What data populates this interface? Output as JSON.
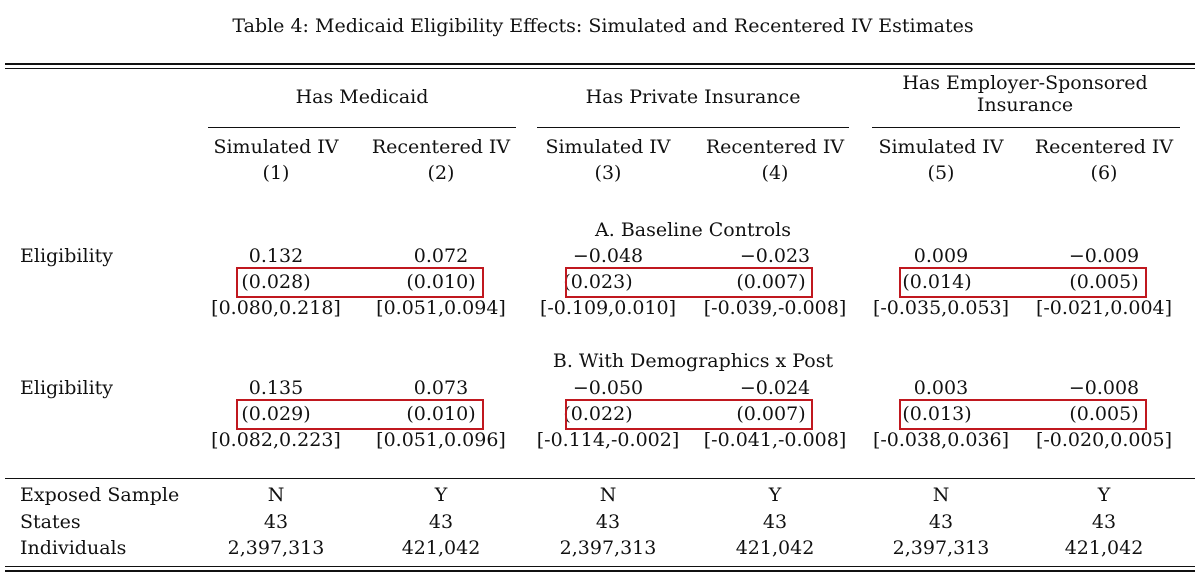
{
  "caption": "Table 4: Medicaid Eligibility Effects: Simulated and Recentered IV Estimates",
  "groups": [
    "Has Medicaid",
    "Has Private Insurance",
    "Has Employer-Sponsored Insurance"
  ],
  "columns": [
    {
      "method": "Simulated IV",
      "num": "(1)"
    },
    {
      "method": "Recentered IV",
      "num": "(2)"
    },
    {
      "method": "Simulated IV",
      "num": "(3)"
    },
    {
      "method": "Recentered IV",
      "num": "(4)"
    },
    {
      "method": "Simulated IV",
      "num": "(5)"
    },
    {
      "method": "Recentered IV",
      "num": "(6)"
    }
  ],
  "panels": [
    {
      "title": "A. Baseline Controls",
      "row_label": "Eligibility",
      "coef": [
        "0.132",
        "0.072",
        "−0.048",
        "−0.023",
        "0.009",
        "−0.009"
      ],
      "se": [
        "(0.028)",
        "(0.010)",
        "(0.023)",
        "(0.007)",
        "(0.014)",
        "(0.005)"
      ],
      "ci": [
        "[0.080,0.218]",
        "[0.051,0.094]",
        "[-0.109,0.010]",
        "[-0.039,-0.008]",
        "[-0.035,0.053]",
        "[-0.021,0.004]"
      ]
    },
    {
      "title": "B. With Demographics x Post",
      "row_label": "Eligibility",
      "coef": [
        "0.135",
        "0.073",
        "−0.050",
        "−0.024",
        "0.003",
        "−0.008"
      ],
      "se": [
        "(0.029)",
        "(0.010)",
        "(0.022)",
        "(0.007)",
        "(0.013)",
        "(0.005)"
      ],
      "ci": [
        "[0.082,0.223]",
        "[0.051,0.096]",
        "[-0.114,-0.002]",
        "[-0.041,-0.008]",
        "[-0.038,0.036]",
        "[-0.020,0.005]"
      ]
    }
  ],
  "footer_rows": [
    {
      "label": "Exposed Sample",
      "values": [
        "N",
        "Y",
        "N",
        "Y",
        "N",
        "Y"
      ]
    },
    {
      "label": "States",
      "values": [
        "43",
        "43",
        "43",
        "43",
        "43",
        "43"
      ]
    },
    {
      "label": "Individuals",
      "values": [
        "2,397,313",
        "421,042",
        "2,397,313",
        "421,042",
        "2,397,313",
        "421,042"
      ]
    }
  ],
  "highlight_color": "#c0181f"
}
